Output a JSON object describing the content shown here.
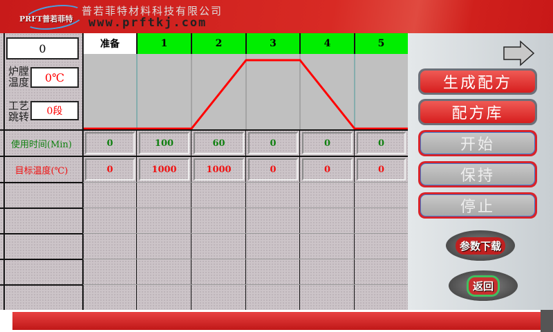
{
  "header": {
    "logo_text": "PRFT普若菲特",
    "company": "普若菲特材料科技有限公司",
    "website": "www.prftkj.com"
  },
  "left_panel": {
    "counter": "0",
    "furnace_temp_label": "炉膛温度",
    "furnace_temp_value": "0℃",
    "step_label": "工艺跳转",
    "step_value": "0段"
  },
  "table": {
    "columns": [
      "准备",
      "1",
      "2",
      "3",
      "4",
      "5"
    ],
    "rows": [
      {
        "label": "使用时间(Min)",
        "values": [
          "0",
          "100",
          "60",
          "0",
          "0",
          "0"
        ],
        "color": "#108010"
      },
      {
        "label": "目标温度(℃)",
        "values": [
          "0",
          "1000",
          "1000",
          "0",
          "0",
          "0"
        ],
        "color": "#f01010"
      }
    ],
    "header_color_active": "#00ee00"
  },
  "chart_data": {
    "type": "line",
    "categories": [
      "准备",
      "1",
      "2",
      "3",
      "4",
      "5"
    ],
    "values": [
      0,
      0,
      1000,
      1000,
      0,
      0
    ],
    "ylim": [
      0,
      1000
    ],
    "color": "#ff0000"
  },
  "side": {
    "buttons": [
      "生成配方",
      "配方库",
      "开始",
      "保持",
      "停止"
    ],
    "download": "参数下载",
    "back": "返回",
    "next_icon": "arrow-right-icon"
  }
}
